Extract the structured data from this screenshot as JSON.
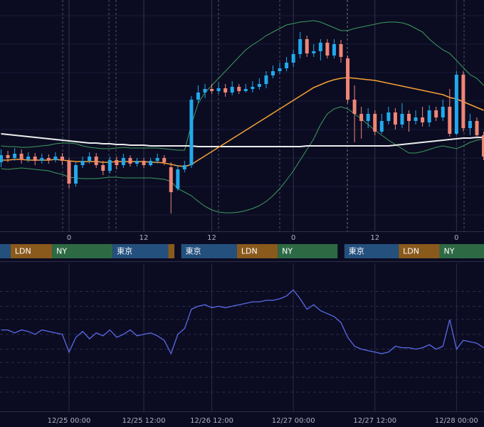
{
  "chart_data": [
    {
      "type": "candlestick",
      "categories": [
        null,
        null,
        null,
        null,
        null,
        null,
        null,
        null,
        null,
        null,
        "0",
        null,
        null,
        null,
        null,
        null,
        null,
        null,
        null,
        null,
        null,
        "12",
        null,
        null,
        null,
        null,
        null,
        null,
        null,
        null,
        null,
        "12",
        null,
        null,
        null,
        null,
        null,
        null,
        null,
        null,
        null,
        null,
        null,
        "0",
        null,
        null,
        null,
        null,
        null,
        null,
        null,
        null,
        null,
        null,
        null,
        "12",
        null,
        null,
        null,
        null,
        null,
        null,
        null,
        null,
        null,
        null,
        null,
        "0",
        null,
        null,
        null,
        null
      ],
      "open": [
        97,
        107,
        103,
        109,
        101,
        105,
        99,
        103,
        100,
        105,
        99,
        67,
        93,
        99,
        105,
        93,
        85,
        100,
        93,
        103,
        95,
        99,
        93,
        99,
        103,
        90,
        60,
        87,
        93,
        185,
        195,
        200,
        197,
        201,
        195,
        203,
        197,
        200,
        203,
        207,
        219,
        225,
        229,
        237,
        249,
        270,
        250,
        253,
        265,
        247,
        263,
        243,
        185,
        165,
        155,
        165,
        140,
        155,
        167,
        150,
        165,
        155,
        160,
        153,
        170,
        160,
        175,
        137,
        220,
        145,
        155,
        135
      ],
      "high": [
        115,
        113,
        117,
        115,
        111,
        110,
        109,
        108,
        111,
        110,
        103,
        97,
        105,
        111,
        110,
        99,
        105,
        105,
        109,
        107,
        103,
        103,
        103,
        109,
        107,
        97,
        93,
        99,
        190,
        205,
        207,
        207,
        209,
        207,
        211,
        207,
        207,
        211,
        215,
        225,
        233,
        237,
        245,
        255,
        280,
        275,
        263,
        270,
        270,
        270,
        269,
        247,
        205,
        175,
        173,
        170,
        165,
        175,
        173,
        180,
        170,
        170,
        175,
        177,
        175,
        185,
        200,
        225,
        225,
        165,
        160,
        140
      ],
      "low": [
        90,
        97,
        99,
        95,
        97,
        93,
        95,
        95,
        97,
        93,
        60,
        63,
        89,
        95,
        89,
        79,
        81,
        87,
        89,
        91,
        91,
        89,
        91,
        95,
        93,
        25,
        57,
        83,
        89,
        180,
        187,
        193,
        193,
        189,
        191,
        193,
        195,
        195,
        199,
        201,
        215,
        221,
        225,
        231,
        243,
        245,
        245,
        240,
        243,
        243,
        237,
        180,
        125,
        130,
        145,
        135,
        137,
        150,
        143,
        145,
        140,
        150,
        147,
        147,
        155,
        155,
        133,
        135,
        140,
        135,
        130,
        100
      ],
      "close": [
        107,
        103,
        109,
        101,
        105,
        99,
        103,
        100,
        105,
        99,
        67,
        93,
        99,
        105,
        93,
        85,
        100,
        93,
        103,
        95,
        99,
        93,
        99,
        103,
        97,
        55,
        87,
        93,
        185,
        195,
        200,
        197,
        201,
        195,
        203,
        197,
        200,
        203,
        207,
        219,
        225,
        229,
        237,
        249,
        270,
        250,
        253,
        265,
        247,
        263,
        245,
        185,
        165,
        155,
        165,
        140,
        155,
        167,
        150,
        165,
        155,
        160,
        153,
        170,
        160,
        175,
        137,
        220,
        145,
        155,
        135,
        105
      ],
      "up_color": "#22a9ec",
      "down_color": "#f08676",
      "overlays": [
        {
          "color": "#3f9b5e",
          "values": [
            120,
            119,
            119,
            118,
            118,
            119,
            120,
            121,
            123,
            124,
            124,
            123,
            120,
            118,
            117,
            116,
            116,
            117,
            118,
            117,
            117,
            117,
            117,
            117,
            116,
            115,
            114,
            114,
            150,
            180,
            195,
            205,
            215,
            225,
            235,
            245,
            255,
            262,
            268,
            275,
            280,
            285,
            290,
            292,
            294,
            295,
            296,
            294,
            290,
            286,
            282,
            282,
            285,
            287,
            289,
            291,
            293,
            294,
            294,
            293,
            290,
            285,
            280,
            270,
            262,
            255,
            250,
            240,
            230,
            220,
            215,
            205
          ]
        },
        {
          "color": "#3f9b5e",
          "values": [
            88,
            87,
            88,
            89,
            88,
            87,
            86,
            85,
            82,
            80,
            76,
            75,
            74,
            74,
            74,
            75,
            76,
            76,
            75,
            75,
            75,
            75,
            75,
            74,
            73,
            70,
            60,
            55,
            50,
            42,
            35,
            30,
            27,
            26,
            26,
            27,
            29,
            32,
            36,
            42,
            50,
            60,
            72,
            85,
            100,
            115,
            130,
            150,
            165,
            172,
            175,
            172,
            165,
            158,
            150,
            142,
            135,
            128,
            122,
            116,
            110,
            110,
            112,
            115,
            118,
            120,
            118,
            116,
            120,
            125,
            128,
            130
          ]
        },
        {
          "color": "#ececec",
          "values": [
            137,
            136,
            135,
            134,
            133,
            132,
            131,
            130,
            129,
            128,
            127,
            126,
            125,
            124,
            124,
            123,
            123,
            122,
            122,
            121,
            121,
            121,
            120,
            120,
            120,
            120,
            120,
            120,
            120,
            119,
            119,
            119,
            119,
            119,
            119,
            119,
            119,
            119,
            119,
            119,
            119,
            119,
            119,
            119,
            119,
            120,
            120,
            120,
            120,
            120,
            120,
            120,
            120,
            120,
            120,
            120,
            120,
            120,
            121,
            122,
            123,
            124,
            125,
            126,
            127,
            128,
            129,
            130,
            131,
            131,
            132,
            132
          ]
        },
        {
          "color": "#f2a033",
          "values": [
            100,
            100,
            101,
            101,
            100,
            100,
            100,
            100,
            101,
            100,
            99,
            98,
            98,
            98,
            98,
            97,
            97,
            98,
            98,
            98,
            98,
            98,
            97,
            97,
            96,
            94,
            92,
            91,
            94,
            100,
            106,
            112,
            118,
            124,
            130,
            136,
            142,
            148,
            154,
            160,
            166,
            172,
            178,
            184,
            190,
            196,
            202,
            206,
            210,
            213,
            215,
            216,
            215,
            214,
            213,
            212,
            210,
            208,
            206,
            204,
            202,
            200,
            198,
            196,
            194,
            192,
            188,
            186,
            182,
            178,
            174,
            170
          ]
        }
      ],
      "ylim": [
        0,
        325
      ],
      "gridlines": [
        23,
        63,
        103,
        143,
        183,
        223,
        263,
        303
      ],
      "sessions": [
        {
          "label": null,
          "color": "#24507e",
          "start": -0.2,
          "end": 1.4
        },
        {
          "label": "LDN",
          "color": "#8a5a1c",
          "start": 1.4,
          "end": 7.5
        },
        {
          "label": "NY",
          "color": "#2d6a44",
          "start": 7.5,
          "end": 16.4
        },
        {
          "label": "東京",
          "color": "#24507e",
          "start": 16.4,
          "end": 24.6
        },
        {
          "label": null,
          "color": "#8a5a1c",
          "start": 24.6,
          "end": 25.5
        },
        {
          "label": "東京",
          "color": "#24507e",
          "start": 26.5,
          "end": 34.7
        },
        {
          "label": "LDN",
          "color": "#8a5a1c",
          "start": 34.7,
          "end": 40.7
        },
        {
          "label": "NY",
          "color": "#2d6a44",
          "start": 40.7,
          "end": 49.5
        },
        {
          "label": "東京",
          "color": "#24507e",
          "start": 50.5,
          "end": 58.5
        },
        {
          "label": "LDN",
          "color": "#8a5a1c",
          "start": 58.5,
          "end": 64.5
        },
        {
          "label": "NY",
          "color": "#2d6a44",
          "start": 64.5,
          "end": 71.1
        }
      ]
    },
    {
      "type": "line",
      "categories": [
        null,
        null,
        null,
        null,
        null,
        null,
        null,
        null,
        null,
        null,
        "12/25 00:00",
        null,
        null,
        null,
        null,
        null,
        null,
        null,
        null,
        null,
        null,
        "12/25 12:00",
        null,
        null,
        null,
        null,
        null,
        null,
        null,
        null,
        null,
        "12/26 12:00",
        null,
        null,
        null,
        null,
        null,
        null,
        null,
        null,
        null,
        null,
        null,
        "12/27 00:00",
        null,
        null,
        null,
        null,
        null,
        null,
        null,
        null,
        null,
        null,
        null,
        "12/27 12:00",
        null,
        null,
        null,
        null,
        null,
        null,
        null,
        null,
        null,
        null,
        null,
        "12/28 00:00",
        null,
        null,
        null,
        null
      ],
      "values": [
        55,
        55,
        53,
        55,
        54,
        52,
        55,
        54,
        53,
        52,
        40,
        50,
        54,
        49,
        53,
        51,
        55,
        50,
        52,
        55,
        51,
        52,
        53,
        51,
        48,
        39,
        52,
        56,
        69,
        71,
        72,
        70,
        71,
        70,
        71,
        72,
        73,
        74,
        74,
        75,
        75,
        76,
        78,
        82,
        76,
        69,
        72,
        68,
        66,
        64,
        60,
        50,
        44,
        42,
        41,
        40,
        39,
        40,
        44,
        43,
        43,
        42,
        43,
        45,
        42,
        44,
        62,
        42,
        48,
        47,
        46,
        43
      ],
      "color": "#5a6ae6",
      "ylim": [
        0,
        100
      ],
      "gridlines": [
        13,
        23,
        33,
        42,
        52,
        62,
        71,
        81
      ]
    }
  ]
}
